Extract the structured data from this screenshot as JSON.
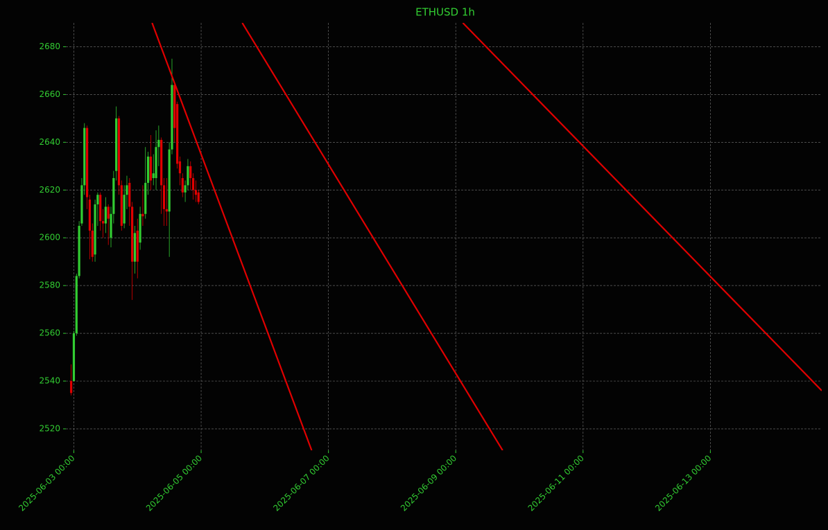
{
  "chart_data": {
    "type": "candlestick",
    "title": "ETHUSD 1h",
    "x": [
      "2025-06-02 23:00",
      "2025-06-03 00:00",
      "2025-06-03 01:00",
      "2025-06-03 02:00",
      "2025-06-03 03:00",
      "2025-06-03 04:00",
      "2025-06-03 05:00",
      "2025-06-03 06:00",
      "2025-06-03 07:00",
      "2025-06-03 08:00",
      "2025-06-03 09:00",
      "2025-06-03 10:00",
      "2025-06-03 11:00",
      "2025-06-03 12:00",
      "2025-06-03 13:00",
      "2025-06-03 14:00",
      "2025-06-03 15:00",
      "2025-06-03 16:00",
      "2025-06-03 17:00",
      "2025-06-03 18:00",
      "2025-06-03 19:00",
      "2025-06-03 20:00",
      "2025-06-03 21:00",
      "2025-06-03 22:00",
      "2025-06-03 23:00",
      "2025-06-04 00:00",
      "2025-06-04 01:00",
      "2025-06-04 02:00",
      "2025-06-04 03:00",
      "2025-06-04 04:00",
      "2025-06-04 05:00",
      "2025-06-04 06:00",
      "2025-06-04 07:00",
      "2025-06-04 08:00",
      "2025-06-04 09:00",
      "2025-06-04 10:00",
      "2025-06-04 11:00",
      "2025-06-04 12:00",
      "2025-06-04 13:00",
      "2025-06-04 14:00",
      "2025-06-04 15:00",
      "2025-06-04 16:00",
      "2025-06-04 17:00",
      "2025-06-04 18:00",
      "2025-06-04 19:00",
      "2025-06-04 20:00",
      "2025-06-04 21:00",
      "2025-06-04 22:00",
      "2025-06-04 23:00"
    ],
    "open": [
      2540,
      2540,
      2560,
      2584,
      2606,
      2622,
      2646,
      2616,
      2603,
      2593,
      2614,
      2618,
      2607,
      2606,
      2613,
      2600,
      2610,
      2628,
      2650,
      2622,
      2606,
      2618,
      2623,
      2613,
      2590,
      2603,
      2598,
      2610,
      2610,
      2623,
      2634,
      2625,
      2625,
      2638,
      2641,
      2622,
      2612,
      2611,
      2637,
      2664,
      2656,
      2632,
      2625,
      2619,
      2622,
      2630,
      2625,
      2620,
      2619
    ],
    "high": [
      2547,
      2561,
      2585,
      2607,
      2625,
      2648,
      2647,
      2618,
      2606,
      2616,
      2619,
      2619,
      2612,
      2617,
      2614,
      2613,
      2628,
      2655,
      2651,
      2624,
      2622,
      2626,
      2625,
      2615,
      2605,
      2608,
      2613,
      2622,
      2638,
      2636,
      2643,
      2635,
      2645,
      2647,
      2642,
      2625,
      2625,
      2640,
      2675,
      2665,
      2657,
      2634,
      2627,
      2624,
      2633,
      2632,
      2627,
      2624,
      2620
    ],
    "low": [
      2534,
      2540,
      2559,
      2583,
      2605,
      2618,
      2612,
      2591,
      2590,
      2590,
      2605,
      2603,
      2600,
      2602,
      2597,
      2596,
      2606,
      2624,
      2618,
      2603,
      2604,
      2612,
      2605,
      2574,
      2585,
      2583,
      2595,
      2605,
      2608,
      2618,
      2620,
      2622,
      2620,
      2630,
      2610,
      2605,
      2605,
      2592,
      2635,
      2640,
      2629,
      2622,
      2617,
      2615,
      2620,
      2620,
      2616,
      2615,
      2614
    ],
    "close": [
      2535,
      2560,
      2584,
      2605,
      2622,
      2646,
      2617,
      2603,
      2592,
      2614,
      2618,
      2607,
      2606,
      2613,
      2608,
      2610,
      2625,
      2650,
      2622,
      2605,
      2618,
      2622,
      2613,
      2590,
      2602,
      2590,
      2610,
      2609,
      2623,
      2634,
      2624,
      2627,
      2638,
      2641,
      2622,
      2612,
      2611,
      2637,
      2664,
      2646,
      2631,
      2627,
      2619,
      2622,
      2630,
      2625,
      2620,
      2618,
      2615
    ],
    "up_color": "#32cd32",
    "down_color": "#e00000",
    "lines": [
      {
        "color": "#e00000",
        "x": [
          "2025-06-04 05:30",
          "2025-06-06 17:40"
        ],
        "values": [
          2690,
          2511
        ]
      },
      {
        "color": "#e00000",
        "x": [
          "2025-06-05 15:30",
          "2025-06-09 17:40"
        ],
        "values": [
          2690,
          2511
        ]
      },
      {
        "color": "#e00000",
        "x": [
          "2025-06-09 02:40",
          "2025-06-14 18:00"
        ],
        "values": [
          2690,
          2536
        ]
      }
    ],
    "xlim": [
      "2025-06-02 21:00",
      "2025-06-14 18:00"
    ],
    "ylim": [
      2511,
      2690
    ],
    "xticks": [
      "2025-06-03 00:00",
      "2025-06-05 00:00",
      "2025-06-07 00:00",
      "2025-06-09 00:00",
      "2025-06-11 00:00",
      "2025-06-13 00:00"
    ],
    "yticks": [
      2520,
      2540,
      2560,
      2580,
      2600,
      2620,
      2640,
      2660,
      2680
    ],
    "grid": true
  }
}
